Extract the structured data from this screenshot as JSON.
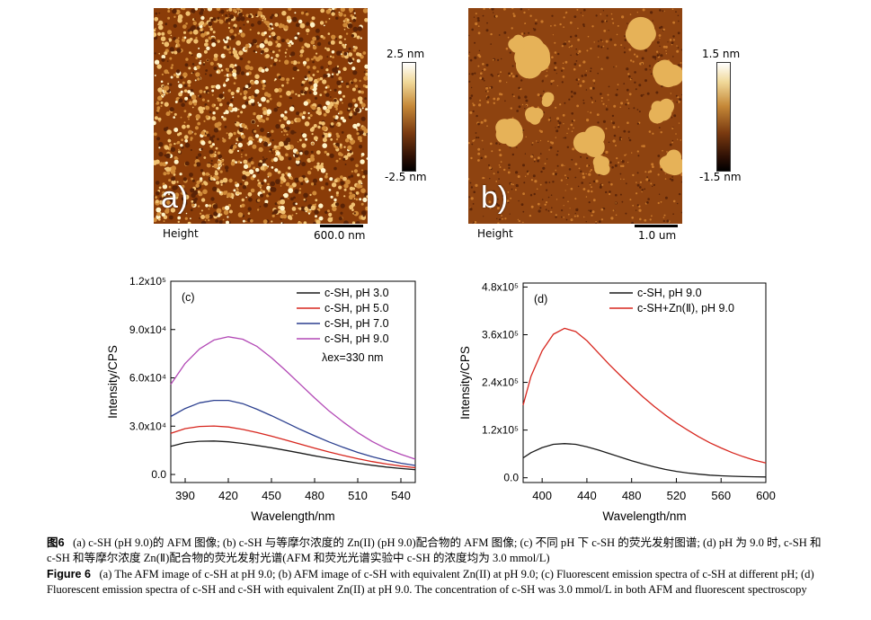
{
  "afm_a": {
    "panel_label": "a)",
    "axis_label": "Height",
    "scale_bar": "600.0 nm",
    "colorbar_max": "2.5 nm",
    "colorbar_min": "-2.5 nm"
  },
  "afm_b": {
    "panel_label": "b)",
    "axis_label": "Height",
    "scale_bar": "1.0 um",
    "colorbar_max": "1.5 nm",
    "colorbar_min": "-1.5 nm"
  },
  "chart_data": [
    {
      "type": "line",
      "panel": "(c)",
      "xlabel": "Wavelength/nm",
      "ylabel": "Intensity/CPS",
      "xlim": [
        380,
        550
      ],
      "ylim": [
        -5000,
        120000
      ],
      "xticks": [
        390,
        420,
        450,
        480,
        510,
        540
      ],
      "yticks": [
        0,
        30000,
        60000,
        90000,
        120000
      ],
      "ytick_labels": [
        "0.0",
        "3.0x10⁴",
        "6.0x10⁴",
        "9.0x10⁴",
        "1.2x10⁵"
      ],
      "annotation": "λex=330 nm",
      "x": [
        380,
        390,
        400,
        410,
        420,
        430,
        440,
        450,
        460,
        470,
        480,
        490,
        500,
        510,
        520,
        530,
        540,
        550
      ],
      "series": [
        {
          "name": "c-SH, pH 3.0",
          "color": "#1a1a1a",
          "values": [
            17500,
            19800,
            20600,
            20800,
            20300,
            19300,
            18000,
            16600,
            15000,
            13300,
            11600,
            10000,
            8500,
            7000,
            5700,
            4600,
            3700,
            3000
          ]
        },
        {
          "name": "c-SH, pH 5.0",
          "color": "#d7261e",
          "values": [
            25500,
            28500,
            29800,
            30100,
            29500,
            28000,
            26000,
            23800,
            21400,
            18900,
            16400,
            14000,
            11800,
            9800,
            8000,
            6500,
            5200,
            4200
          ]
        },
        {
          "name": "c-SH, pH 7.0",
          "color": "#2b3f8f",
          "values": [
            36000,
            41000,
            44500,
            46000,
            46000,
            44000,
            40500,
            36500,
            32300,
            28000,
            24000,
            20200,
            16800,
            13700,
            11000,
            8800,
            7000,
            5600
          ]
        },
        {
          "name": "c-SH, pH 9.0",
          "color": "#b248b5",
          "values": [
            56000,
            69000,
            78000,
            83500,
            85500,
            84000,
            79500,
            72500,
            64500,
            56000,
            47500,
            39500,
            32500,
            26000,
            20500,
            16000,
            12500,
            9500
          ]
        }
      ]
    },
    {
      "type": "line",
      "panel": "(d)",
      "xlabel": "Wavelength/nm",
      "ylabel": "Intensity/CPS",
      "xlim": [
        383,
        600
      ],
      "ylim": [
        -12000,
        490000
      ],
      "xticks": [
        400,
        440,
        480,
        520,
        560,
        600
      ],
      "yticks": [
        0,
        120000,
        240000,
        360000,
        480000
      ],
      "ytick_labels": [
        "0.0",
        "1.2x10⁵",
        "2.4x10⁵",
        "3.6x10⁵",
        "4.8x10⁵"
      ],
      "x": [
        383,
        390,
        400,
        410,
        420,
        430,
        440,
        450,
        460,
        470,
        480,
        490,
        500,
        510,
        520,
        530,
        540,
        550,
        560,
        570,
        580,
        590,
        600
      ],
      "series": [
        {
          "name": "c-SH, pH 9.0",
          "color": "#1a1a1a",
          "values": [
            50000,
            63000,
            76000,
            84000,
            86000,
            84000,
            78000,
            70000,
            61000,
            52000,
            43000,
            35000,
            27500,
            21000,
            16000,
            12000,
            9000,
            6500,
            5000,
            3800,
            3000,
            2400,
            2000
          ]
        },
        {
          "name": "c-SH+Zn(Ⅱ), pH 9.0",
          "color": "#d7261e",
          "values": [
            183000,
            255000,
            320000,
            361000,
            376000,
            368000,
            345000,
            315000,
            285000,
            257000,
            230000,
            204000,
            180000,
            158000,
            138000,
            120000,
            103000,
            88000,
            75000,
            63000,
            53000,
            44000,
            37000
          ]
        }
      ]
    }
  ],
  "caption": {
    "cn_label": "图6",
    "cn_text": "(a) c-SH (pH 9.0)的 AFM 图像; (b) c-SH 与等摩尔浓度的 Zn(II) (pH 9.0)配合物的 AFM 图像; (c) 不同 pH 下 c-SH 的荧光发射图谱; (d) pH 为 9.0 时, c-SH 和 c-SH 和等摩尔浓度 Zn(Ⅱ)配合物的荧光发射光谱(AFM 和荧光光谱实验中 c-SH 的浓度均为 3.0 mmol/L)",
    "en_label": "Figure 6",
    "en_text": "(a) The AFM image of c-SH at pH 9.0; (b) AFM image of c-SH with equivalent Zn(II) at pH 9.0; (c) Fluorescent emission spectra of c-SH at different pH; (d) Fluorescent emission spectra of c-SH and c-SH with equivalent Zn(II) at pH 9.0. The concentration of c-SH was 3.0 mmol/L in both AFM and fluorescent spectroscopy"
  }
}
